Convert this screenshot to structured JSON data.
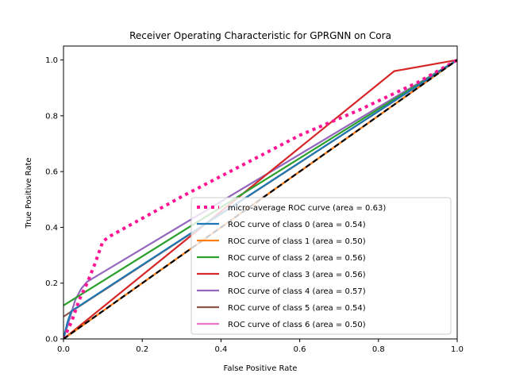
{
  "chart_data": {
    "type": "line",
    "title": "Receiver Operating Characteristic for GPRGNN on Cora",
    "xlabel": "False Positive Rate",
    "ylabel": "True Positive Rate",
    "xlim": [
      0.0,
      1.0
    ],
    "ylim": [
      0.0,
      1.05
    ],
    "xticks": [
      "0.0",
      "0.2",
      "0.4",
      "0.6",
      "0.8",
      "1.0"
    ],
    "yticks": [
      "0.0",
      "0.2",
      "0.4",
      "0.6",
      "0.8",
      "1.0"
    ],
    "grid": false,
    "legend_position": "lower-right",
    "series": [
      {
        "name": "micro-average ROC curve (area = 0.63)",
        "color": "#ff1493",
        "style": "dotted",
        "points": [
          [
            0.0,
            0.0
          ],
          [
            0.02,
            0.06
          ],
          [
            0.04,
            0.14
          ],
          [
            0.06,
            0.2
          ],
          [
            0.08,
            0.27
          ],
          [
            0.1,
            0.35
          ],
          [
            0.12,
            0.37
          ],
          [
            0.3,
            0.51
          ],
          [
            0.45,
            0.62
          ],
          [
            0.6,
            0.73
          ],
          [
            0.75,
            0.82
          ],
          [
            0.9,
            0.92
          ],
          [
            1.0,
            1.0
          ]
        ]
      },
      {
        "name": "ROC curve of class 0 (area = 0.54)",
        "color": "#1f77b4",
        "style": "solid",
        "points": [
          [
            0.0,
            0.0
          ],
          [
            0.01,
            0.06
          ],
          [
            0.02,
            0.1
          ],
          [
            1.0,
            1.0
          ]
        ]
      },
      {
        "name": "ROC curve of class 1 (area = 0.50)",
        "color": "#ff7f0e",
        "style": "solid",
        "points": [
          [
            0.0,
            0.0
          ],
          [
            1.0,
            1.0
          ]
        ]
      },
      {
        "name": "ROC curve of class 2 (area = 0.56)",
        "color": "#2ca02c",
        "style": "solid",
        "points": [
          [
            0.0,
            0.12
          ],
          [
            1.0,
            1.0
          ]
        ]
      },
      {
        "name": "ROC curve of class 3 (area = 0.56)",
        "color": "#d62728",
        "style": "solid",
        "points": [
          [
            0.0,
            0.0
          ],
          [
            0.84,
            0.96
          ],
          [
            1.0,
            1.0
          ]
        ]
      },
      {
        "name": "ROC curve of class 4 (area = 0.57)",
        "color": "#9467bd",
        "style": "solid",
        "points": [
          [
            0.0,
            0.0
          ],
          [
            0.03,
            0.14
          ],
          [
            0.045,
            0.18
          ],
          [
            0.06,
            0.205
          ],
          [
            1.0,
            1.0
          ]
        ]
      },
      {
        "name": "ROC curve of class 5 (area = 0.54)",
        "color": "#8c564b",
        "style": "solid",
        "points": [
          [
            0.0,
            0.08
          ],
          [
            1.0,
            1.0
          ]
        ]
      },
      {
        "name": "ROC curve of class 6 (area = 0.50)",
        "color": "#e377c2",
        "style": "solid",
        "points": [
          [
            0.0,
            0.0
          ],
          [
            1.0,
            1.0
          ]
        ]
      }
    ],
    "reference_line": {
      "color": "#000000",
      "style": "dashed",
      "points": [
        [
          0.0,
          0.0
        ],
        [
          1.0,
          1.0
        ]
      ]
    }
  }
}
